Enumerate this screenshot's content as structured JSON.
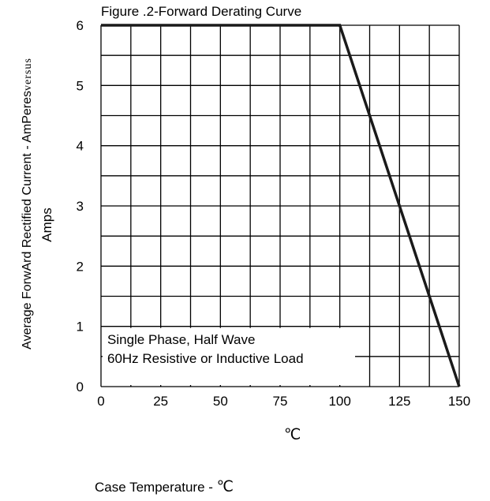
{
  "chart_data": {
    "type": "line",
    "title": "Figure .2-Forward Derating Curve",
    "ylabel_main": "Average ForwArd Rectified Current  -  AmPeres",
    "ylabel_tail": "versus",
    "ylabel_unit": "Amps",
    "xlabel_unit": "℃",
    "xlabel_main": "Case Temperature  -  ",
    "xlabel_deg": "℃",
    "xticks": [
      0,
      25,
      50,
      75,
      100,
      125,
      150
    ],
    "yticks": [
      0,
      1,
      2,
      3,
      4,
      5,
      6
    ],
    "xlim": [
      0,
      150
    ],
    "ylim": [
      0,
      6
    ],
    "grid": true,
    "grid_minor_x": 12.5,
    "grid_minor_y": 0.5,
    "series": [
      {
        "x": [
          0,
          100,
          150
        ],
        "y": [
          6,
          6,
          0
        ]
      }
    ],
    "annotations": [
      "Single Phase, Half Wave",
      "60Hz Resistive or Inductive Load"
    ]
  }
}
